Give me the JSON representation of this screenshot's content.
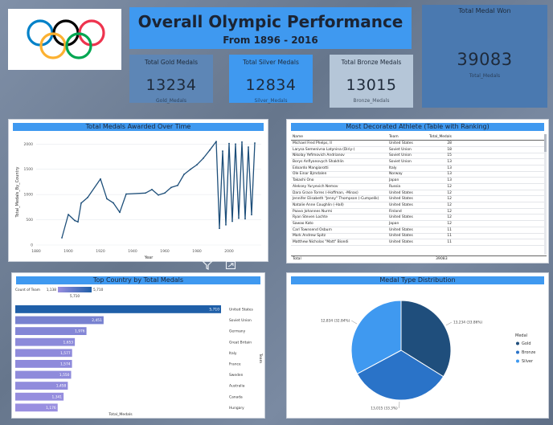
{
  "header": {
    "title": "Overall Olympic Performance",
    "subtitle": "From 1896 - 2016"
  },
  "kpis": {
    "gold": {
      "label": "Total Gold Medals",
      "value": "13234",
      "sub": "Gold_Medals"
    },
    "silver": {
      "label": "Total Silver Medals",
      "value": "12834",
      "sub": "Silver_Medals"
    },
    "bronze": {
      "label": "Total Bronze Medals",
      "value": "13015",
      "sub": "Bronze_Medals"
    },
    "total": {
      "label": "Total Medal Won",
      "value": "39083",
      "sub": "Total_Medals"
    }
  },
  "colors": {
    "accent": "#3f99f0",
    "line": "#1e4f7a",
    "pie_gold": "#1f4e7c",
    "pie_bronze": "#2a73c8",
    "pie_silver": "#3f99f0",
    "bar_top": "#1f5fa8",
    "bar_rest": "#8a7fd8"
  },
  "line_panel": {
    "title": "Total Medals Awarded Over Time"
  },
  "table_panel": {
    "title": "Most Decorated Athlete (Table with Ranking)",
    "columns": [
      "Name",
      "Team",
      "Total_Medals"
    ],
    "rows": [
      [
        "Michael Fred Phelps, II",
        "United States",
        "28"
      ],
      [
        "Larysa Semenivna Latynina (Diriy-)",
        "Soviet Union",
        "18"
      ],
      [
        "Nikolay Yefimovich Andrianov",
        "Soviet Union",
        "15"
      ],
      [
        "Borys Anfiyanovych Shakhlin",
        "Soviet Union",
        "13"
      ],
      [
        "Edoardo Mangiarotti",
        "Italy",
        "13"
      ],
      [
        "Ole Einar Bjrndalen",
        "Norway",
        "13"
      ],
      [
        "Takashi Ono",
        "Japan",
        "13"
      ],
      [
        "Aleksey Yuryevich Nemov",
        "Russia",
        "12"
      ],
      [
        "Dara Grace Torres (-Hoffman, -Minas)",
        "United States",
        "12"
      ],
      [
        "Jennifer Elisabeth \"Jenny\" Thompson (-Cumpelik)",
        "United States",
        "12"
      ],
      [
        "Natalie Anne Coughlin (-Hall)",
        "United States",
        "12"
      ],
      [
        "Paavo Johannes Nurmi",
        "Finland",
        "12"
      ],
      [
        "Ryan Steven Lochte",
        "United States",
        "12"
      ],
      [
        "Sawao Kato",
        "Japan",
        "12"
      ],
      [
        "Carl Townsend Osburn",
        "United States",
        "11"
      ],
      [
        "Mark Andrew Spitz",
        "United States",
        "11"
      ],
      [
        "Matthew Nicholas \"Matt\" Biondi",
        "United States",
        "11"
      ]
    ],
    "total_label": "Total",
    "total_value": "39083"
  },
  "bar_panel": {
    "title": "Top Country by Total Medals",
    "legend_label": "Count of Team",
    "legend_min": "1,138",
    "legend_max": "5,710",
    "legend_value": "5,710",
    "xlabel": "Total_Medals",
    "ylabel": "Team"
  },
  "pie_panel": {
    "title": "Medal Type Distribution"
  },
  "visual_tools": {
    "filter": "filter-icon",
    "focus": "focus-mode-icon",
    "more": "more-options-icon"
  },
  "chart_data": [
    {
      "type": "line",
      "title": "Total Medals Awarded Over Time",
      "xlabel": "Year",
      "ylabel": "Total_Medals_By_Country",
      "xlim": [
        1880,
        2020
      ],
      "ylim": [
        0,
        2100
      ],
      "xticks": [
        "1880",
        "1900",
        "1920",
        "1940",
        "1960",
        "1980",
        "2000"
      ],
      "yticks": [
        "0",
        "500",
        "1000",
        "1500",
        "2000"
      ],
      "x": [
        1896,
        1900,
        1904,
        1906,
        1908,
        1912,
        1920,
        1924,
        1928,
        1932,
        1936,
        1948,
        1952,
        1956,
        1960,
        1964,
        1968,
        1972,
        1976,
        1980,
        1984,
        1988,
        1992,
        1994,
        1996,
        1998,
        2000,
        2002,
        2004,
        2006,
        2008,
        2010,
        2012,
        2014,
        2016
      ],
      "y": [
        143,
        604,
        486,
        458,
        831,
        941,
        1308,
        917,
        834,
        647,
        1010,
        1030,
        1100,
        990,
        1030,
        1140,
        1180,
        1400,
        1500,
        1590,
        1720,
        1880,
        2050,
        330,
        1860,
        400,
        2010,
        470,
        2000,
        530,
        2040,
        520,
        1940,
        600,
        2020
      ]
    },
    {
      "type": "bar",
      "title": "Top Country by Total Medals",
      "orientation": "horizontal",
      "categories": [
        "United States",
        "Soviet Union",
        "Germany",
        "Great Britain",
        "Italy",
        "France",
        "Sweden",
        "Australia",
        "Canada",
        "Hungary"
      ],
      "values": [
        5710,
        2451,
        1976,
        1653,
        1577,
        1574,
        1550,
        1458,
        1341,
        1176
      ],
      "labels": [
        "5,710",
        "2,451",
        "1,976",
        "1,653",
        "1,577",
        "1,574",
        "1,550",
        "1,458",
        "1,341",
        "1,176"
      ],
      "xlabel": "Total_Medals",
      "ylabel": "Team",
      "legend_title": "Count of Team",
      "legend_range": [
        1138,
        5710
      ]
    },
    {
      "type": "pie",
      "title": "Medal Type Distribution",
      "legend_title": "Medal",
      "slices": [
        {
          "name": "Gold",
          "value": 13234,
          "label": "13,234 (33.86%)"
        },
        {
          "name": "Bronze",
          "value": 13015,
          "label": "13,015 (33.3%)"
        },
        {
          "name": "Silver",
          "value": 12834,
          "label": "12,834 (32.84%)"
        }
      ]
    }
  ]
}
